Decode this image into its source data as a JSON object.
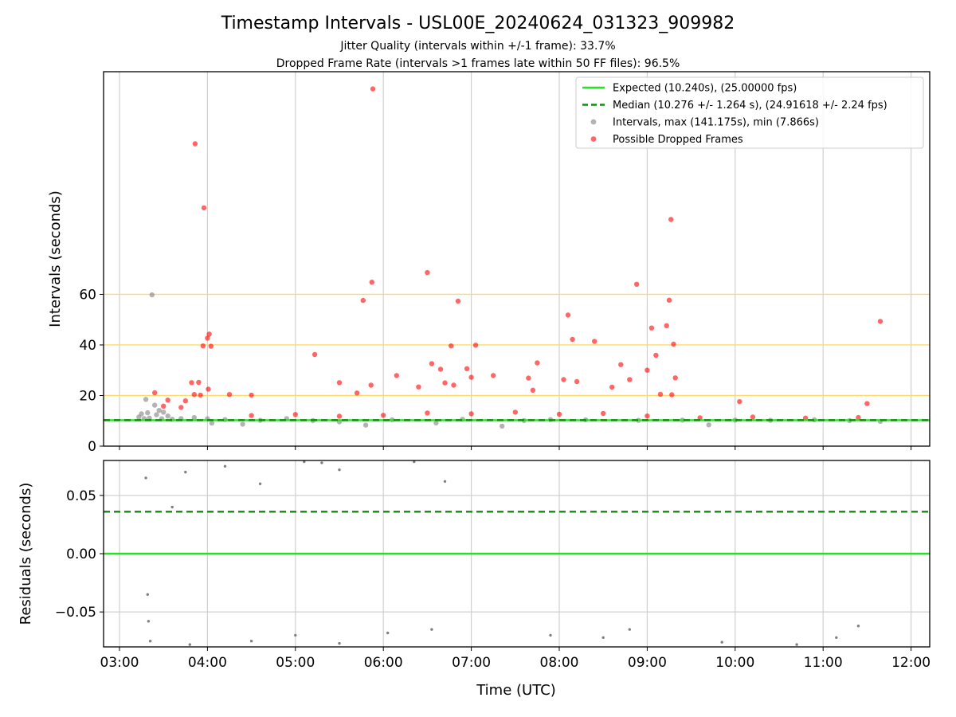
{
  "chart_data": {
    "title": "Timestamp Intervals - USL00E_20240624_031323_909982",
    "subtitle_lines": [
      "Jitter Quality (intervals within +/-1 frame): 33.7%",
      "Dropped Frame Rate (intervals >1 frames late within 50 FF files): 96.5%"
    ],
    "xlabel": "Time (UTC)",
    "x_ticks": [
      "03:00",
      "04:00",
      "05:00",
      "06:00",
      "07:00",
      "08:00",
      "09:00",
      "10:00",
      "11:00",
      "12:00"
    ],
    "panels": [
      {
        "name": "intervals",
        "type": "scatter",
        "ylabel": "Intervals (seconds)",
        "ylim": [
          0,
          148
        ],
        "y_ticks": [
          0,
          20,
          40,
          60
        ],
        "reference_lines": [
          {
            "y": 20,
            "color": "#ffd966"
          },
          {
            "y": 40,
            "color": "#ffd966"
          },
          {
            "y": 60,
            "color": "#ffd966"
          }
        ],
        "grid_x": true,
        "legend_position": "top-right",
        "series": [
          {
            "name": "Expected (10.240s), (25.00000 fps)",
            "kind": "line",
            "style": "solid",
            "color": "#22e422",
            "y": 10.24
          },
          {
            "name": "Median (10.276 +/- 1.264 s), (24.91618 +/- 2.24 fps)",
            "kind": "line",
            "style": "dashed",
            "color": "#138a13",
            "y": 10.276
          },
          {
            "name": "Intervals, max (141.175s), min (7.866s)",
            "kind": "scatter",
            "color": "#808080",
            "points": [
              [
                3.22,
                11.5
              ],
              [
                3.25,
                12.8
              ],
              [
                3.28,
                10.9
              ],
              [
                3.3,
                18.5
              ],
              [
                3.32,
                13.2
              ],
              [
                3.34,
                11.1
              ],
              [
                3.37,
                59.8
              ],
              [
                3.4,
                16.2
              ],
              [
                3.42,
                12.4
              ],
              [
                3.45,
                14.1
              ],
              [
                3.48,
                10.8
              ],
              [
                3.5,
                13.4
              ],
              [
                3.55,
                11.9
              ],
              [
                3.6,
                10.6
              ],
              [
                3.7,
                10.9
              ],
              [
                3.85,
                11.3
              ],
              [
                4.0,
                10.8
              ],
              [
                4.05,
                9.1
              ],
              [
                4.2,
                10.5
              ],
              [
                4.4,
                8.7
              ],
              [
                4.6,
                10.2
              ],
              [
                4.9,
                10.9
              ],
              [
                5.2,
                10.1
              ],
              [
                5.5,
                9.6
              ],
              [
                5.8,
                8.3
              ],
              [
                6.1,
                10.4
              ],
              [
                6.6,
                9.2
              ],
              [
                6.9,
                10.6
              ],
              [
                7.35,
                7.9
              ],
              [
                7.6,
                10.1
              ],
              [
                7.9,
                10.5
              ],
              [
                8.3,
                10.4
              ],
              [
                8.9,
                10.2
              ],
              [
                9.4,
                10.3
              ],
              [
                9.7,
                8.4
              ],
              [
                10.0,
                10.3
              ],
              [
                10.4,
                10.2
              ],
              [
                10.9,
                10.4
              ],
              [
                11.3,
                10.1
              ],
              [
                11.65,
                9.8
              ]
            ]
          },
          {
            "name": "Possible Dropped Frames",
            "kind": "scatter",
            "color": "#ff0000",
            "points": [
              [
                3.4,
                21.1
              ],
              [
                3.5,
                15.8
              ],
              [
                3.55,
                18.2
              ],
              [
                3.7,
                15.3
              ],
              [
                3.75,
                17.9
              ],
              [
                3.82,
                25.1
              ],
              [
                3.85,
                20.4
              ],
              [
                3.86,
                119.5
              ],
              [
                3.9,
                25.2
              ],
              [
                3.92,
                20.2
              ],
              [
                3.95,
                39.6
              ],
              [
                3.96,
                94.2
              ],
              [
                4.0,
                42.7
              ],
              [
                4.02,
                44.3
              ],
              [
                4.04,
                39.5
              ],
              [
                4.01,
                22.5
              ],
              [
                4.25,
                20.4
              ],
              [
                4.5,
                20.2
              ],
              [
                5.22,
                36.2
              ],
              [
                5.5,
                25.1
              ],
              [
                5.7,
                21.0
              ],
              [
                5.77,
                57.6
              ],
              [
                5.86,
                24.1
              ],
              [
                5.87,
                64.8
              ],
              [
                5.88,
                141.2
              ],
              [
                6.15,
                27.9
              ],
              [
                6.4,
                23.4
              ],
              [
                6.5,
                68.6
              ],
              [
                6.55,
                32.6
              ],
              [
                6.65,
                30.4
              ],
              [
                6.7,
                25.0
              ],
              [
                6.77,
                39.6
              ],
              [
                6.8,
                24.1
              ],
              [
                6.85,
                57.3
              ],
              [
                6.95,
                30.6
              ],
              [
                7.0,
                27.2
              ],
              [
                7.05,
                39.9
              ],
              [
                7.25,
                27.9
              ],
              [
                7.65,
                26.9
              ],
              [
                7.75,
                32.9
              ],
              [
                7.7,
                22.1
              ],
              [
                8.05,
                26.3
              ],
              [
                8.1,
                51.8
              ],
              [
                8.15,
                42.2
              ],
              [
                8.2,
                25.5
              ],
              [
                8.4,
                41.4
              ],
              [
                8.6,
                23.3
              ],
              [
                8.7,
                32.2
              ],
              [
                8.8,
                26.3
              ],
              [
                8.88,
                64.0
              ],
              [
                9.0,
                30.0
              ],
              [
                9.05,
                46.7
              ],
              [
                9.1,
                35.9
              ],
              [
                9.15,
                20.5
              ],
              [
                9.22,
                47.6
              ],
              [
                9.25,
                57.7
              ],
              [
                9.27,
                89.6
              ],
              [
                9.3,
                40.3
              ],
              [
                9.32,
                27.0
              ],
              [
                9.28,
                20.3
              ],
              [
                10.05,
                17.6
              ],
              [
                11.5,
                16.8
              ],
              [
                11.65,
                49.3
              ],
              [
                4.5,
                12.1
              ],
              [
                5.0,
                12.5
              ],
              [
                5.5,
                11.8
              ],
              [
                6.0,
                12.2
              ],
              [
                6.5,
                13.1
              ],
              [
                7.0,
                12.8
              ],
              [
                7.5,
                13.4
              ],
              [
                8.0,
                12.6
              ],
              [
                8.5,
                12.9
              ],
              [
                9.0,
                11.9
              ],
              [
                9.6,
                11.2
              ],
              [
                10.2,
                11.5
              ],
              [
                10.8,
                11.1
              ],
              [
                11.4,
                11.3
              ]
            ]
          }
        ]
      },
      {
        "name": "residuals",
        "type": "scatter",
        "ylabel": "Residuals (seconds)",
        "ylim": [
          -0.08,
          0.08
        ],
        "y_ticks": [
          "−0.05",
          "0.00",
          "0.05"
        ],
        "y_tick_values": [
          -0.05,
          0.0,
          0.05
        ],
        "grid": true,
        "series": [
          {
            "name": "Expected",
            "kind": "line",
            "style": "solid",
            "color": "#22e422",
            "y": 0.0
          },
          {
            "name": "Median",
            "kind": "line",
            "style": "dashed",
            "color": "#138a13",
            "y": 0.036
          },
          {
            "name": "Residuals",
            "kind": "scatter",
            "color": "#808080",
            "points": [
              [
                3.3,
                0.065
              ],
              [
                3.6,
                0.04
              ],
              [
                3.75,
                0.07
              ],
              [
                4.2,
                0.075
              ],
              [
                4.6,
                0.06
              ],
              [
                5.1,
                0.079
              ],
              [
                5.3,
                0.078
              ],
              [
                5.5,
                0.072
              ],
              [
                6.35,
                0.079
              ],
              [
                6.7,
                0.062
              ],
              [
                3.32,
                -0.035
              ],
              [
                3.33,
                -0.058
              ],
              [
                3.35,
                -0.075
              ],
              [
                3.8,
                -0.078
              ],
              [
                4.5,
                -0.075
              ],
              [
                5.0,
                -0.07
              ],
              [
                5.5,
                -0.077
              ],
              [
                6.05,
                -0.068
              ],
              [
                6.55,
                -0.065
              ],
              [
                7.9,
                -0.07
              ],
              [
                8.5,
                -0.072
              ],
              [
                8.8,
                -0.065
              ],
              [
                9.85,
                -0.076
              ],
              [
                10.7,
                -0.078
              ],
              [
                11.15,
                -0.072
              ],
              [
                11.4,
                -0.062
              ]
            ]
          }
        ]
      }
    ]
  }
}
